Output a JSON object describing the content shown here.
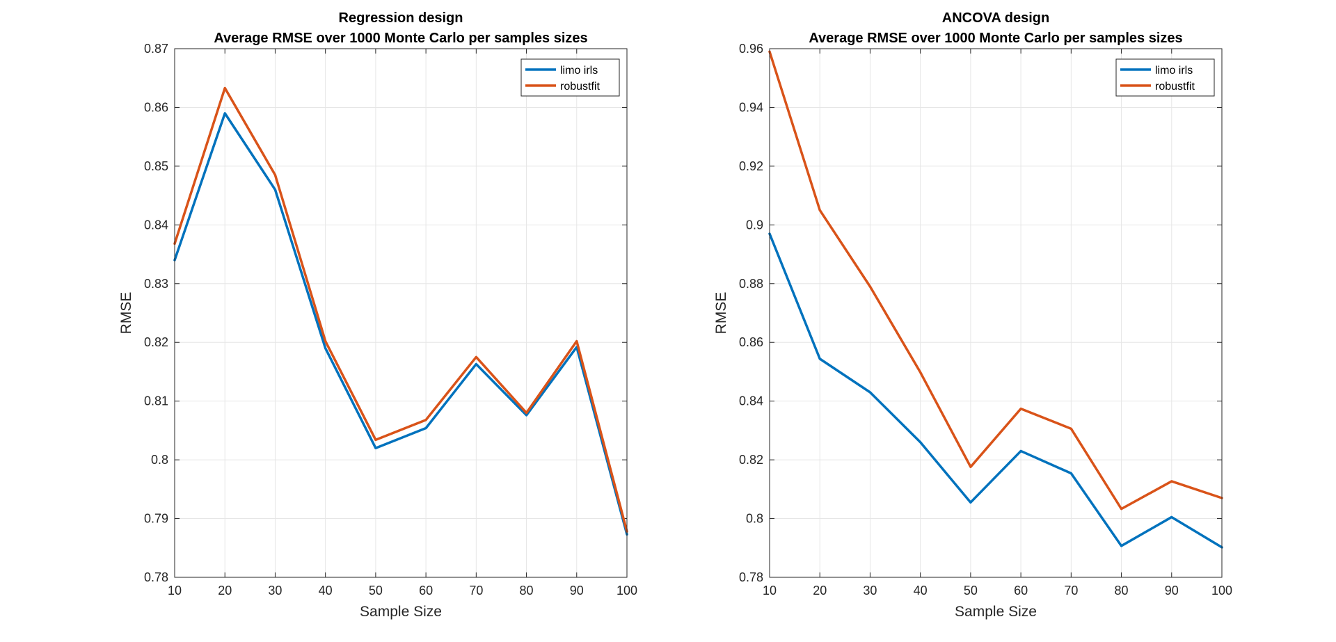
{
  "chart_data": [
    {
      "type": "line",
      "title": [
        "Regression design",
        "Average RMSE over 1000 Monte Carlo per samples sizes"
      ],
      "xlabel": "Sample Size",
      "ylabel": "RMSE",
      "xlim": [
        10,
        100
      ],
      "ylim": [
        0.78,
        0.87
      ],
      "xticks": [
        10,
        20,
        30,
        40,
        50,
        60,
        70,
        80,
        90,
        100
      ],
      "xtick_labels": [
        "10",
        "20",
        "30",
        "40",
        "50",
        "60",
        "70",
        "80",
        "90",
        "100"
      ],
      "yticks": [
        0.78,
        0.79,
        0.8,
        0.81,
        0.82,
        0.83,
        0.84,
        0.85,
        0.86,
        0.87
      ],
      "ytick_labels": [
        "0.78",
        "0.79",
        "0.8",
        "0.81",
        "0.82",
        "0.83",
        "0.84",
        "0.85",
        "0.86",
        "0.87"
      ],
      "grid": true,
      "legend_position": "top-right",
      "x": [
        10,
        20,
        30,
        40,
        50,
        60,
        70,
        80,
        90,
        100
      ],
      "series": [
        {
          "name": "limo irls",
          "color": "#0072BD",
          "values": [
            0.834,
            0.859,
            0.846,
            0.819,
            0.802,
            0.8054,
            0.8163,
            0.8076,
            0.8192,
            0.7873
          ]
        },
        {
          "name": "robustfit",
          "color": "#D95319",
          "values": [
            0.8368,
            0.8633,
            0.8485,
            0.8202,
            0.8034,
            0.8068,
            0.8175,
            0.808,
            0.8202,
            0.7878
          ]
        }
      ]
    },
    {
      "type": "line",
      "title": [
        "ANCOVA design",
        "Average RMSE over 1000 Monte Carlo per samples sizes"
      ],
      "xlabel": "Sample Size",
      "ylabel": "RMSE",
      "xlim": [
        10,
        100
      ],
      "ylim": [
        0.78,
        0.96
      ],
      "xticks": [
        10,
        20,
        30,
        40,
        50,
        60,
        70,
        80,
        90,
        100
      ],
      "xtick_labels": [
        "10",
        "20",
        "30",
        "40",
        "50",
        "60",
        "70",
        "80",
        "90",
        "100"
      ],
      "yticks": [
        0.78,
        0.8,
        0.82,
        0.84,
        0.86,
        0.88,
        0.9,
        0.92,
        0.94,
        0.96
      ],
      "ytick_labels": [
        "0.78",
        "0.8",
        "0.82",
        "0.84",
        "0.86",
        "0.88",
        "0.9",
        "0.92",
        "0.94",
        "0.96"
      ],
      "grid": true,
      "legend_position": "top-right",
      "x": [
        10,
        20,
        30,
        40,
        50,
        60,
        70,
        80,
        90,
        100
      ],
      "series": [
        {
          "name": "limo irls",
          "color": "#0072BD",
          "values": [
            0.897,
            0.8544,
            0.843,
            0.826,
            0.8055,
            0.823,
            0.8154,
            0.7907,
            0.8005,
            0.7902
          ]
        },
        {
          "name": "robustfit",
          "color": "#D95319",
          "values": [
            0.959,
            0.905,
            0.879,
            0.8498,
            0.8176,
            0.8374,
            0.8306,
            0.8033,
            0.8127,
            0.807
          ]
        }
      ]
    }
  ]
}
